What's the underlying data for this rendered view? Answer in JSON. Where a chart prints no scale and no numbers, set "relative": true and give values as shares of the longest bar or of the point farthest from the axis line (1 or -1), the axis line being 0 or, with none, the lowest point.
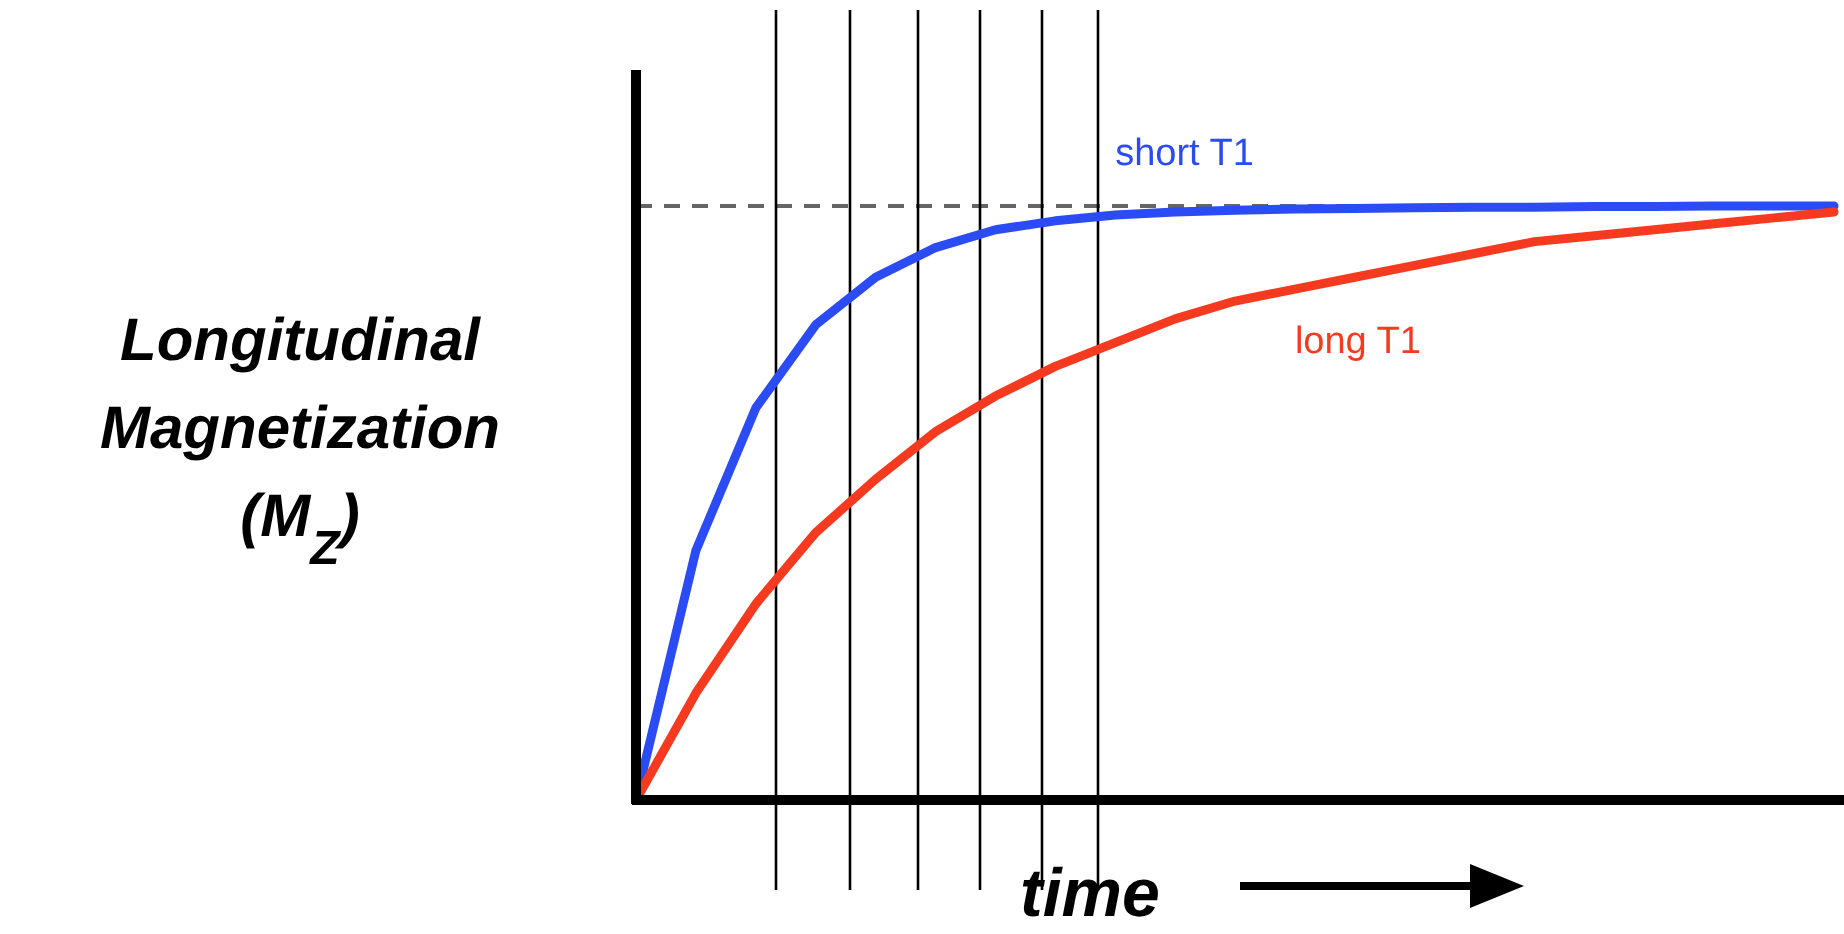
{
  "chart_data": {
    "type": "line",
    "relative": true,
    "legend": false,
    "line_style": "solid",
    "xlabel": "time",
    "ylabel": "Longitudinal Magnetization (M$_{Z}$)",
    "categories": [
      null,
      null,
      null,
      null,
      null,
      null,
      null,
      null,
      null,
      null,
      null,
      null,
      null,
      null,
      null,
      null,
      null,
      null,
      null,
      null,
      null
    ],
    "series": [
      {
        "name": "short T1",
        "color": "#2b4cf5",
        "values": [
          0,
          0.42,
          0.66,
          0.8,
          0.88,
          0.93,
          0.96,
          0.975,
          0.985,
          0.99,
          0.993,
          0.995,
          0.996,
          0.997,
          0.998,
          0.998,
          0.999,
          0.999,
          1,
          1,
          1
        ]
      },
      {
        "name": "long T1",
        "color": "#f53a1f",
        "values": [
          0,
          0.18,
          0.33,
          0.45,
          0.54,
          0.62,
          0.68,
          0.73,
          0.77,
          0.81,
          0.84,
          0.86,
          0.88,
          0.9,
          0.92,
          0.94,
          0.95,
          0.96,
          0.97,
          0.98,
          0.99
        ]
      }
    ],
    "ref_lines": [
      {
        "axis": "y",
        "value": 1,
        "color": "#666666",
        "line_style": "dashed"
      }
    ]
  }
}
